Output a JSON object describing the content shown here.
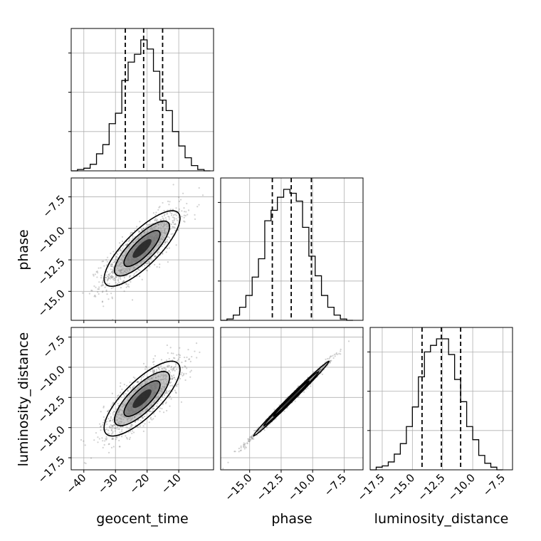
{
  "chart_data": {
    "type": "corner",
    "parameters": [
      "geocent_time",
      "phase",
      "luminosity_distance"
    ],
    "axis_labels": {
      "x": [
        "geocent_time",
        "phase",
        "luminosity_distance"
      ],
      "y": [
        "phase",
        "luminosity_distance"
      ]
    },
    "ranges": {
      "geocent_time": [
        -44,
        1
      ],
      "phase": [
        -17.3,
        -6.0
      ],
      "luminosity_distance": [
        -18.5,
        -6.7
      ]
    },
    "ticks": {
      "geocent_time": [
        -40,
        -30,
        -20,
        -10
      ],
      "phase": [
        -15.0,
        -12.5,
        -10.0,
        -7.5
      ],
      "luminosity_distance": [
        -17.5,
        -15.0,
        -12.5,
        -10.0,
        -7.5
      ]
    },
    "tick_labels": {
      "geocent_time": [
        "−40",
        "−30",
        "−20",
        "−10"
      ],
      "phase": [
        "−15.0",
        "−12.5",
        "−10.0",
        "−7.5"
      ],
      "luminosity_distance": [
        "−17.5",
        "−15.0",
        "−12.5",
        "−10.0",
        "−7.5"
      ]
    },
    "quantiles": {
      "geocent_time": [
        -26.9,
        -21.1,
        -15.1
      ],
      "phase": [
        -13.2,
        -11.7,
        -10.1
      ],
      "luminosity_distance": [
        -14.2,
        -12.6,
        -11.0
      ]
    },
    "histograms": {
      "geocent_time": {
        "edges": [
          -44,
          -42,
          -40,
          -38,
          -36,
          -34,
          -32,
          -30,
          -28,
          -26,
          -24,
          -22,
          -20,
          -18,
          -16,
          -14,
          -12,
          -10,
          -8,
          -6,
          -4,
          -2,
          0
        ],
        "heights": [
          0,
          0.01,
          0.02,
          0.05,
          0.13,
          0.2,
          0.36,
          0.44,
          0.69,
          0.83,
          0.89,
          1.0,
          0.93,
          0.76,
          0.54,
          0.46,
          0.3,
          0.19,
          0.1,
          0.04,
          0.01,
          0.0
        ]
      },
      "phase": {
        "edges": [
          -17.3,
          -16.8,
          -16.3,
          -15.8,
          -15.3,
          -14.8,
          -14.3,
          -13.8,
          -13.3,
          -12.8,
          -12.3,
          -11.8,
          -11.3,
          -10.8,
          -10.3,
          -9.8,
          -9.3,
          -8.8,
          -8.3,
          -7.8,
          -7.3,
          -6.8
        ],
        "heights": [
          0,
          0.01,
          0.04,
          0.1,
          0.19,
          0.33,
          0.47,
          0.76,
          0.84,
          0.94,
          1.0,
          0.97,
          0.91,
          0.71,
          0.49,
          0.34,
          0.19,
          0.1,
          0.04,
          0.01,
          0.0
        ]
      },
      "luminosity_distance": {
        "edges": [
          -18.5,
          -18.0,
          -17.5,
          -17.0,
          -16.5,
          -16.0,
          -15.5,
          -15.0,
          -14.5,
          -14.0,
          -13.5,
          -13.0,
          -12.5,
          -12.0,
          -11.5,
          -11.0,
          -10.5,
          -10.0,
          -9.5,
          -9.0,
          -8.5,
          -8.0,
          -7.5
        ],
        "heights": [
          0,
          0.02,
          0.03,
          0.06,
          0.12,
          0.2,
          0.33,
          0.48,
          0.71,
          0.9,
          0.95,
          1.0,
          1.0,
          0.88,
          0.69,
          0.52,
          0.33,
          0.23,
          0.11,
          0.05,
          0.02,
          0.0
        ]
      }
    },
    "contours": {
      "phase_vs_geocent_time": {
        "center": [
          -21.6,
          -11.6
        ],
        "sd": [
          6.0,
          1.5
        ],
        "corr": 0.8
      },
      "luminosity_distance_vs_geocent_time": {
        "center": [
          -21.6,
          -12.6
        ],
        "sd": [
          6.0,
          1.55
        ],
        "corr": 0.78
      },
      "luminosity_distance_vs_phase": {
        "center": [
          -11.7,
          -12.6
        ],
        "sd": [
          1.5,
          1.55
        ],
        "corr": 0.995
      }
    },
    "grid": true,
    "colors": {
      "contour": "#000000",
      "scatter": "#7a7a7a",
      "grid": "#b0b0b0"
    }
  }
}
